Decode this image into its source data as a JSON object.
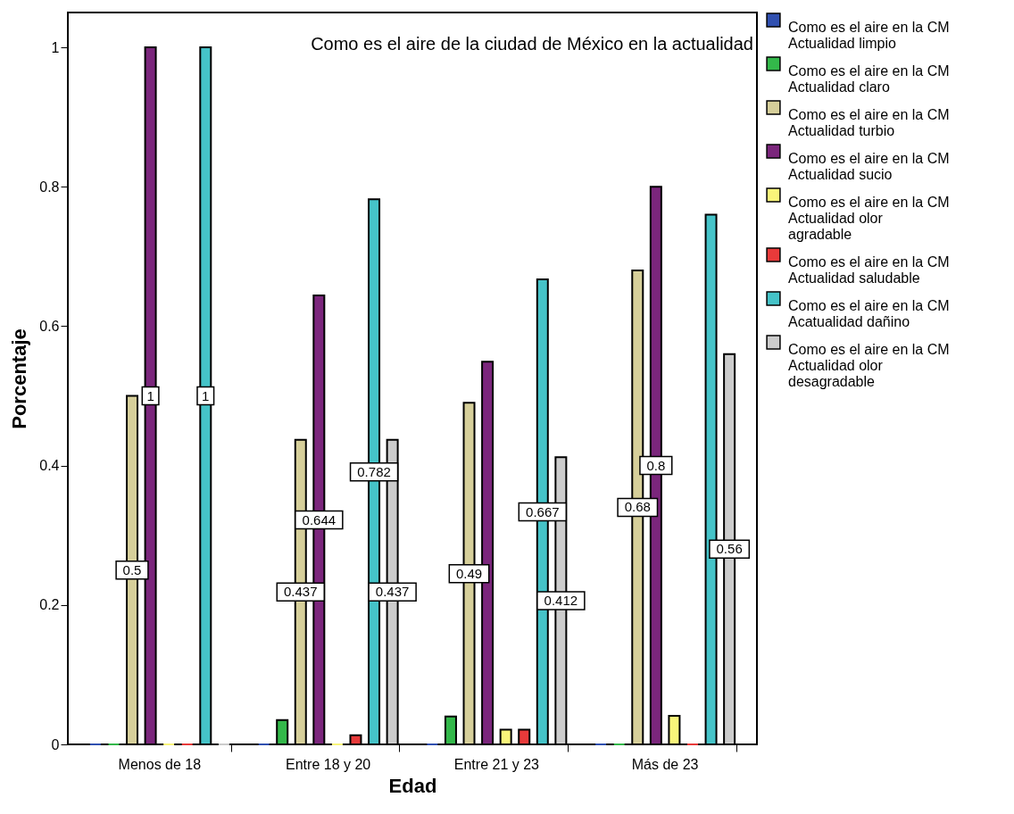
{
  "chart_data": {
    "type": "bar",
    "title": "Como es el aire de la ciudad de México en la actualidad",
    "xlabel": "Edad",
    "ylabel": "Porcentaje",
    "categories": [
      "Menos de 18",
      "Entre 18 y 20",
      "Entre 21 y 23",
      "Más de 23"
    ],
    "ylim": [
      0,
      1.05
    ],
    "yticks": [
      0,
      0.2,
      0.4,
      0.6,
      0.8,
      1
    ],
    "grid": false,
    "legend": "right",
    "series": [
      {
        "name": "Como es el aire en la CM\nActualidad limpio",
        "color": "#3050b0",
        "values": [
          0,
          0,
          0,
          0
        ],
        "value_labels": [
          null,
          null,
          null,
          null
        ]
      },
      {
        "name": "Como es el aire en la CM\nActualidad claro",
        "color": "#33b84a",
        "values": [
          0,
          0.035,
          0.04,
          0
        ],
        "value_labels": [
          null,
          null,
          null,
          null
        ]
      },
      {
        "name": "Como es el aire en la CM\nActualidad turbio",
        "color": "#d6cf9a",
        "values": [
          0.5,
          0.437,
          0.49,
          0.68
        ],
        "value_labels": [
          "0.5",
          "0.437",
          "0.49",
          "0.68"
        ]
      },
      {
        "name": "Como es el aire en la CM\nActualidad sucio",
        "color": "#7b267c",
        "values": [
          1,
          0.644,
          0.549,
          0.8
        ],
        "value_labels": [
          "1",
          "0.644",
          null,
          "0.8"
        ]
      },
      {
        "name": "Como es el aire en la CM\nActualidad olor\nagradable",
        "color": "#f9f57a",
        "values": [
          0,
          0,
          0.021,
          0.041
        ],
        "value_labels": [
          null,
          null,
          null,
          null
        ]
      },
      {
        "name": "Como es el aire en la CM\nActualidad saludable",
        "color": "#e83a3a",
        "values": [
          0,
          0.013,
          0.021,
          0
        ],
        "value_labels": [
          null,
          null,
          null,
          null
        ]
      },
      {
        "name": "Como es el aire en la CM\nAcatualidad dañino",
        "color": "#45c3c8",
        "values": [
          1,
          0.782,
          0.667,
          0.76
        ],
        "value_labels": [
          "1",
          "0.782",
          "0.667",
          null
        ]
      },
      {
        "name": "Como es el aire en la CM\nActualidad olor\ndesagradable",
        "color": "#cccccc",
        "values": [
          0,
          0.437,
          0.412,
          0.56
        ],
        "value_labels": [
          null,
          "0.437",
          "0.412",
          "0.56"
        ]
      }
    ]
  }
}
